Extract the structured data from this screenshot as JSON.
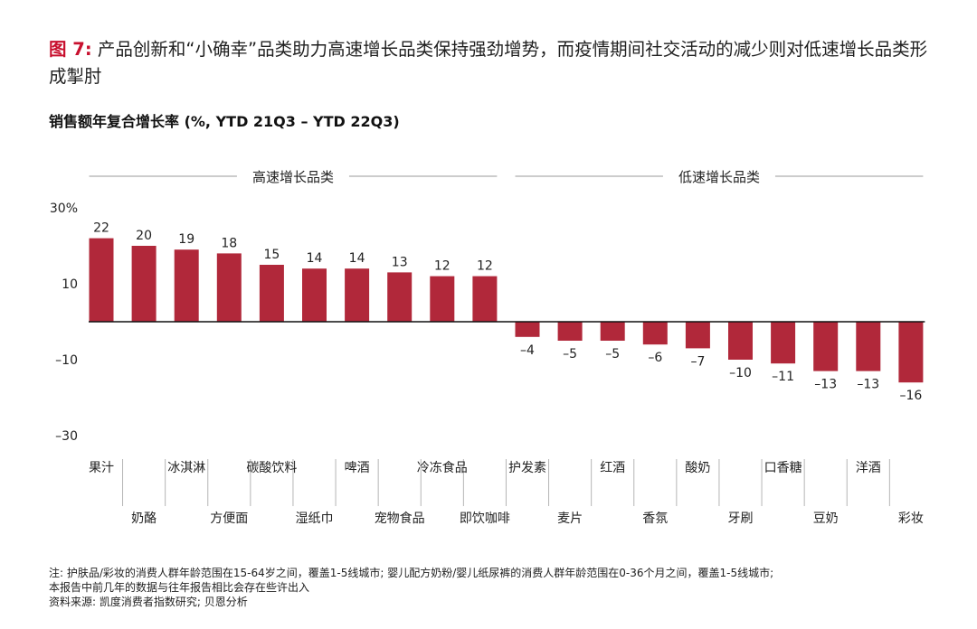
{
  "header": {
    "fig_label": "图 7:",
    "title": "产品创新和“小确幸”品类助力高速增长品类保持强劲增势，而疫情期间社交活动的减少则对低速增长品类形成掣肘",
    "subtitle": "销售额年复合增长率 (%, YTD 21Q3 – YTD 22Q3)"
  },
  "chart_data": {
    "type": "bar",
    "title": "",
    "ylabel": "",
    "xlabel": "",
    "ylim": [
      -30,
      30
    ],
    "y_ticks": [
      30,
      10,
      -10,
      -30
    ],
    "y_tick_labels": [
      "30%",
      "10",
      "–10",
      "–30"
    ],
    "groups": [
      {
        "label": "高速增长品类",
        "start": 0,
        "end": 9
      },
      {
        "label": "低速增长品类",
        "start": 10,
        "end": 19
      }
    ],
    "categories": [
      "果汁",
      "奶酪",
      "冰淇淋",
      "方便面",
      "碳酸饮料",
      "湿纸巾",
      "啤酒",
      "宠物食品",
      "冷冻食品",
      "即饮咖啡",
      "护发素",
      "麦片",
      "红酒",
      "香氛",
      "酸奶",
      "牙刷",
      "口香糖",
      "豆奶",
      "洋酒",
      "彩妆"
    ],
    "values": [
      22,
      20,
      19,
      18,
      15,
      14,
      14,
      13,
      12,
      12,
      -4,
      -5,
      -5,
      -6,
      -7,
      -10,
      -11,
      -13,
      -13,
      -16
    ],
    "value_labels": [
      "22",
      "20",
      "19",
      "18",
      "15",
      "14",
      "14",
      "13",
      "12",
      "12",
      "–4",
      "–5",
      "–5",
      "–6",
      "–7",
      "–10",
      "–11",
      "–13",
      "–13",
      "–16"
    ],
    "bar_color": "#b1283a",
    "grid": false
  },
  "notes": {
    "line1": "注: 护肤品/彩妆的消费人群年龄范围在15-64岁之间，覆盖1-5线城市; 婴儿配方奶粉/婴儿纸尿裤的消费人群年龄范围在0-36个月之间，覆盖1-5线城市;",
    "line2": "本报告中前几年的数据与往年报告相比会存在些许出入",
    "line3": "资料来源: 凯度消费者指数研究; 贝恩分析"
  }
}
